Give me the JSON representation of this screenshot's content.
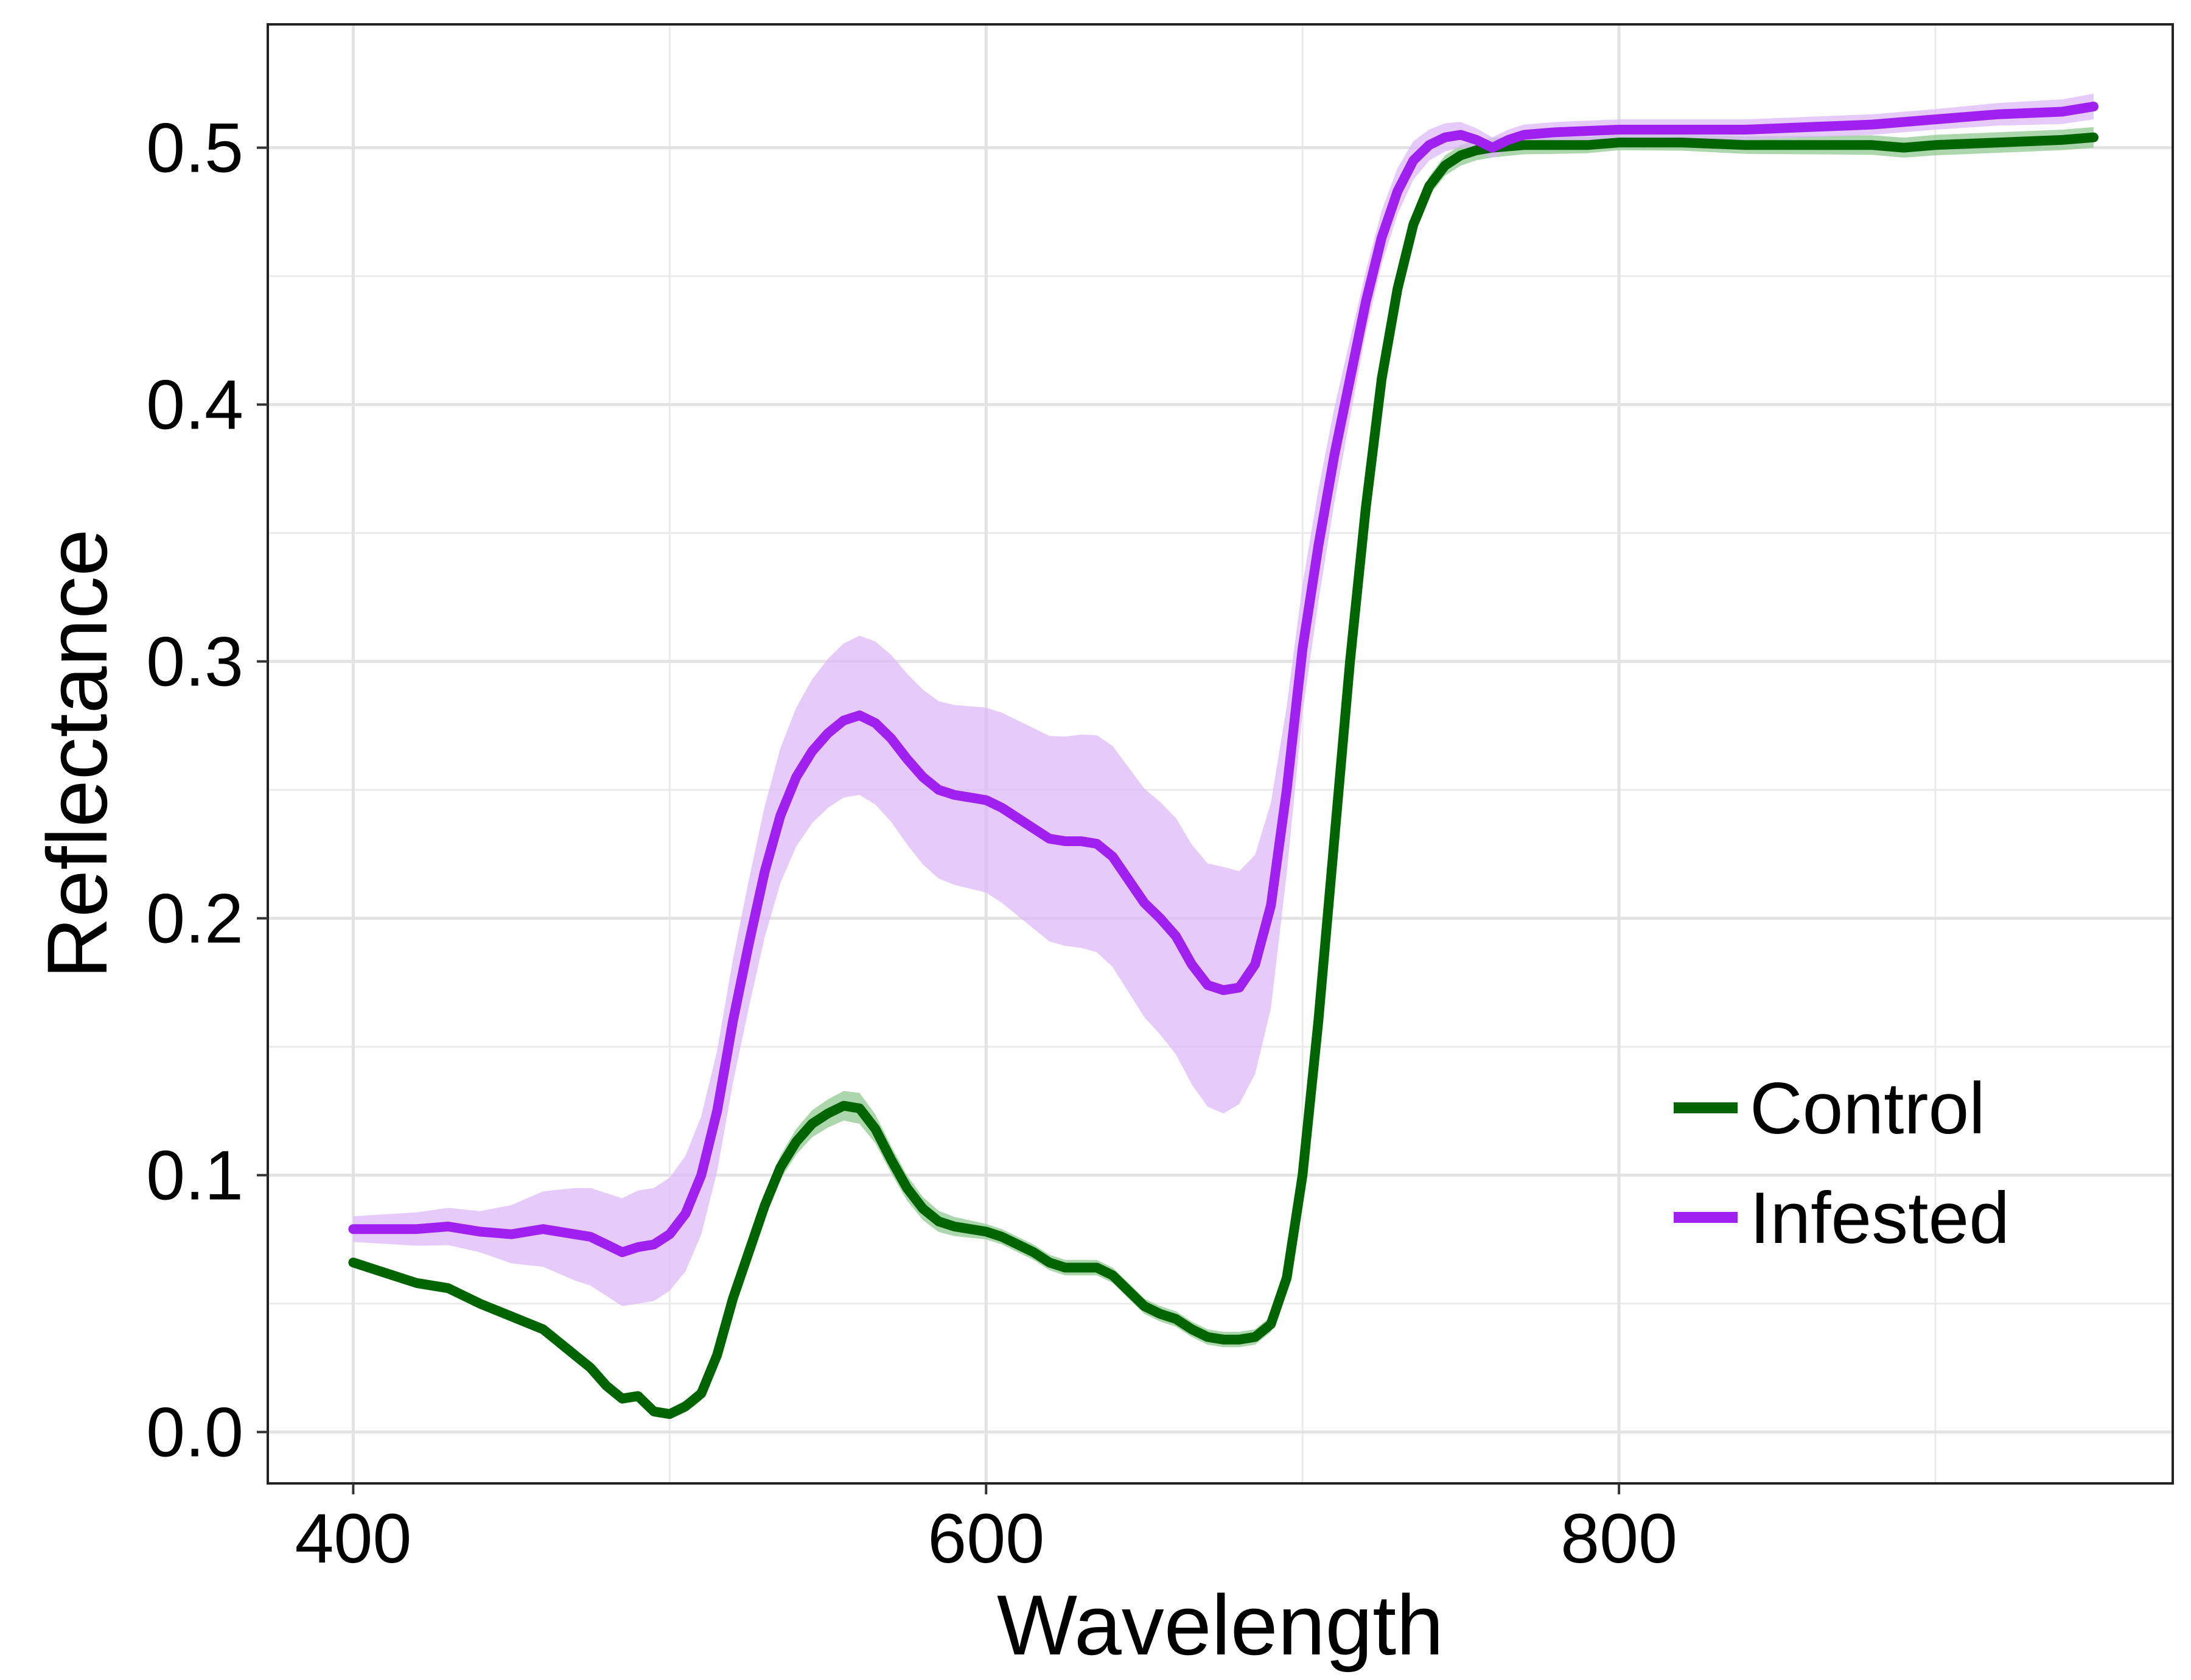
{
  "chart_data": {
    "type": "line",
    "title": "",
    "xlabel": "Wavelength",
    "ylabel": "Reflectance",
    "xlim": [
      373,
      975
    ],
    "ylim": [
      -0.02,
      0.548
    ],
    "x_ticks": [
      400,
      600,
      800
    ],
    "x_tick_labels": [
      "400",
      "600",
      "800"
    ],
    "y_ticks": [
      0.0,
      0.1,
      0.2,
      0.3,
      0.4,
      0.5
    ],
    "y_tick_labels": [
      "0.0",
      "0.1",
      "0.2",
      "0.3",
      "0.4",
      "0.5"
    ],
    "grid": true,
    "legend_position": "bottom-right",
    "series": [
      {
        "name": "Control",
        "color": "#006400",
        "band_color": "#90c890",
        "points": [
          [
            400,
            0.066
          ],
          [
            410,
            0.062
          ],
          [
            420,
            0.058
          ],
          [
            430,
            0.056
          ],
          [
            440,
            0.05
          ],
          [
            450,
            0.045
          ],
          [
            460,
            0.04
          ],
          [
            470,
            0.03
          ],
          [
            475,
            0.025
          ],
          [
            480,
            0.018
          ],
          [
            485,
            0.013
          ],
          [
            490,
            0.014
          ],
          [
            495,
            0.008
          ],
          [
            500,
            0.007
          ],
          [
            505,
            0.01
          ],
          [
            510,
            0.015
          ],
          [
            515,
            0.03
          ],
          [
            520,
            0.052
          ],
          [
            525,
            0.07
          ],
          [
            530,
            0.088
          ],
          [
            535,
            0.103
          ],
          [
            540,
            0.113
          ],
          [
            545,
            0.12
          ],
          [
            550,
            0.124
          ],
          [
            555,
            0.127
          ],
          [
            560,
            0.126
          ],
          [
            565,
            0.118
          ],
          [
            570,
            0.106
          ],
          [
            575,
            0.095
          ],
          [
            580,
            0.087
          ],
          [
            585,
            0.082
          ],
          [
            590,
            0.08
          ],
          [
            595,
            0.079
          ],
          [
            600,
            0.078
          ],
          [
            605,
            0.076
          ],
          [
            610,
            0.073
          ],
          [
            615,
            0.07
          ],
          [
            620,
            0.066
          ],
          [
            625,
            0.064
          ],
          [
            630,
            0.064
          ],
          [
            635,
            0.064
          ],
          [
            640,
            0.061
          ],
          [
            645,
            0.055
          ],
          [
            650,
            0.049
          ],
          [
            655,
            0.046
          ],
          [
            660,
            0.044
          ],
          [
            665,
            0.04
          ],
          [
            670,
            0.037
          ],
          [
            675,
            0.036
          ],
          [
            680,
            0.036
          ],
          [
            685,
            0.037
          ],
          [
            690,
            0.042
          ],
          [
            695,
            0.06
          ],
          [
            700,
            0.1
          ],
          [
            705,
            0.16
          ],
          [
            710,
            0.23
          ],
          [
            715,
            0.3
          ],
          [
            720,
            0.36
          ],
          [
            725,
            0.41
          ],
          [
            730,
            0.445
          ],
          [
            735,
            0.47
          ],
          [
            740,
            0.485
          ],
          [
            745,
            0.493
          ],
          [
            750,
            0.497
          ],
          [
            755,
            0.499
          ],
          [
            760,
            0.5
          ],
          [
            770,
            0.501
          ],
          [
            780,
            0.501
          ],
          [
            790,
            0.501
          ],
          [
            800,
            0.502
          ],
          [
            820,
            0.502
          ],
          [
            840,
            0.501
          ],
          [
            860,
            0.501
          ],
          [
            880,
            0.501
          ],
          [
            890,
            0.5
          ],
          [
            900,
            0.501
          ],
          [
            920,
            0.502
          ],
          [
            940,
            0.503
          ],
          [
            950,
            0.504
          ]
        ],
        "band": [
          [
            400,
            0.002
          ],
          [
            500,
            0.002
          ],
          [
            540,
            0.005
          ],
          [
            560,
            0.006
          ],
          [
            600,
            0.003
          ],
          [
            700,
            0.003
          ],
          [
            750,
            0.004
          ],
          [
            800,
            0.003
          ],
          [
            900,
            0.004
          ],
          [
            950,
            0.004
          ]
        ]
      },
      {
        "name": "Infested",
        "color": "#a020f0",
        "band_color": "#dcb8f8",
        "points": [
          [
            400,
            0.079
          ],
          [
            410,
            0.079
          ],
          [
            420,
            0.079
          ],
          [
            430,
            0.08
          ],
          [
            440,
            0.078
          ],
          [
            450,
            0.077
          ],
          [
            460,
            0.079
          ],
          [
            470,
            0.077
          ],
          [
            475,
            0.076
          ],
          [
            480,
            0.073
          ],
          [
            485,
            0.07
          ],
          [
            490,
            0.072
          ],
          [
            495,
            0.073
          ],
          [
            500,
            0.077
          ],
          [
            505,
            0.085
          ],
          [
            510,
            0.1
          ],
          [
            515,
            0.125
          ],
          [
            520,
            0.16
          ],
          [
            525,
            0.19
          ],
          [
            530,
            0.218
          ],
          [
            535,
            0.24
          ],
          [
            540,
            0.255
          ],
          [
            545,
            0.265
          ],
          [
            550,
            0.272
          ],
          [
            555,
            0.277
          ],
          [
            560,
            0.279
          ],
          [
            565,
            0.276
          ],
          [
            570,
            0.27
          ],
          [
            575,
            0.262
          ],
          [
            580,
            0.255
          ],
          [
            585,
            0.25
          ],
          [
            590,
            0.248
          ],
          [
            595,
            0.247
          ],
          [
            600,
            0.246
          ],
          [
            605,
            0.243
          ],
          [
            610,
            0.239
          ],
          [
            615,
            0.235
          ],
          [
            620,
            0.231
          ],
          [
            625,
            0.23
          ],
          [
            630,
            0.23
          ],
          [
            635,
            0.229
          ],
          [
            640,
            0.224
          ],
          [
            645,
            0.215
          ],
          [
            650,
            0.206
          ],
          [
            655,
            0.2
          ],
          [
            660,
            0.193
          ],
          [
            665,
            0.182
          ],
          [
            670,
            0.174
          ],
          [
            675,
            0.172
          ],
          [
            680,
            0.173
          ],
          [
            685,
            0.182
          ],
          [
            690,
            0.205
          ],
          [
            695,
            0.25
          ],
          [
            700,
            0.305
          ],
          [
            705,
            0.345
          ],
          [
            710,
            0.38
          ],
          [
            715,
            0.41
          ],
          [
            720,
            0.44
          ],
          [
            725,
            0.465
          ],
          [
            730,
            0.483
          ],
          [
            735,
            0.495
          ],
          [
            740,
            0.501
          ],
          [
            745,
            0.504
          ],
          [
            750,
            0.505
          ],
          [
            755,
            0.503
          ],
          [
            760,
            0.5
          ],
          [
            765,
            0.503
          ],
          [
            770,
            0.505
          ],
          [
            780,
            0.506
          ],
          [
            800,
            0.507
          ],
          [
            820,
            0.507
          ],
          [
            840,
            0.507
          ],
          [
            860,
            0.508
          ],
          [
            880,
            0.509
          ],
          [
            890,
            0.51
          ],
          [
            900,
            0.511
          ],
          [
            920,
            0.513
          ],
          [
            940,
            0.514
          ],
          [
            950,
            0.516
          ]
        ],
        "band": [
          [
            400,
            0.005
          ],
          [
            440,
            0.008
          ],
          [
            470,
            0.018
          ],
          [
            490,
            0.022
          ],
          [
            500,
            0.022
          ],
          [
            520,
            0.024
          ],
          [
            540,
            0.027
          ],
          [
            560,
            0.031
          ],
          [
            580,
            0.034
          ],
          [
            600,
            0.036
          ],
          [
            620,
            0.04
          ],
          [
            640,
            0.043
          ],
          [
            660,
            0.046
          ],
          [
            675,
            0.048
          ],
          [
            690,
            0.04
          ],
          [
            700,
            0.025
          ],
          [
            720,
            0.012
          ],
          [
            740,
            0.006
          ],
          [
            760,
            0.004
          ],
          [
            800,
            0.004
          ],
          [
            900,
            0.004
          ],
          [
            950,
            0.005
          ]
        ]
      }
    ]
  }
}
